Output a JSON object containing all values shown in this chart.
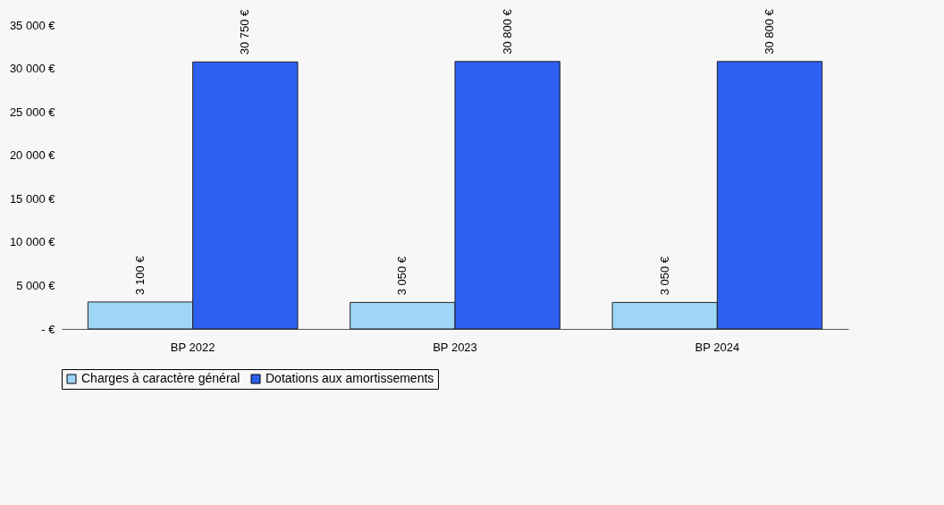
{
  "chart_data": {
    "type": "bar",
    "categories": [
      "BP 2022",
      "BP 2023",
      "BP 2024"
    ],
    "series": [
      {
        "name": "Charges à caractère général",
        "color": "#9fd6f6",
        "values": [
          3100,
          3050,
          3050
        ],
        "value_labels": [
          "3 100 €",
          "3 050 €",
          "3 050 €"
        ]
      },
      {
        "name": "Dotations aux amortissements",
        "color": "#2f5ff0",
        "values": [
          30750,
          30800,
          30800
        ],
        "value_labels": [
          "30 750 €",
          "30 800 €",
          "30 800 €"
        ]
      }
    ],
    "ylim": [
      0,
      35000
    ],
    "yticks": [
      {
        "value": 0,
        "label": "- €"
      },
      {
        "value": 5000,
        "label": "5 000 €"
      },
      {
        "value": 10000,
        "label": "10 000 €"
      },
      {
        "value": 15000,
        "label": "15 000 €"
      },
      {
        "value": 20000,
        "label": "20 000 €"
      },
      {
        "value": 25000,
        "label": "25 000 €"
      },
      {
        "value": 30000,
        "label": "30 000 €"
      },
      {
        "value": 35000,
        "label": "35 000 €"
      }
    ],
    "grid": false,
    "legend": "bottom"
  }
}
